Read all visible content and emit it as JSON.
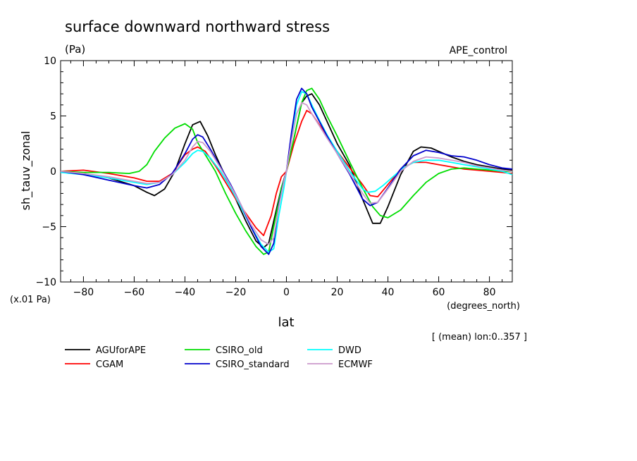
{
  "chart_data": {
    "type": "line",
    "title": "surface downward northward stress",
    "units_label": "(Pa)",
    "subtitle_right": "APE_control",
    "scale_note": "(x.01 Pa)",
    "xlabel": "lat",
    "x_units": "(degrees_north)",
    "ylabel": "sh_tauv_zonal",
    "footnote": "[ (mean) lon:0..357 ]",
    "xlim": [
      -89,
      89
    ],
    "ylim": [
      -10,
      10
    ],
    "x_ticks": [
      -80,
      -60,
      -40,
      -20,
      0,
      20,
      40,
      60,
      80
    ],
    "y_ticks": [
      -10,
      -5,
      0,
      5,
      10
    ],
    "x_tick_labels": [
      "−80",
      "−60",
      "−40",
      "−20",
      "0",
      "20",
      "40",
      "60",
      "80"
    ],
    "y_tick_labels": [
      "−10",
      "−5",
      "0",
      "5",
      "10"
    ],
    "grid": false,
    "legend_position": "bottom",
    "series": [
      {
        "name": "AGUforAPE",
        "color": "#000000",
        "x": [
          -89,
          -80,
          -70,
          -60,
          -55,
          -52,
          -48,
          -44,
          -40,
          -37,
          -34,
          -31,
          -28,
          -24,
          -20,
          -16,
          -12,
          -9,
          -7,
          -5,
          -2,
          0,
          3,
          6,
          8,
          10,
          13,
          16,
          20,
          25,
          30,
          34,
          37,
          40,
          45,
          50,
          53,
          57,
          60,
          65,
          70,
          75,
          80,
          85,
          89
        ],
        "y": [
          0,
          -0.2,
          -0.6,
          -1.3,
          -1.9,
          -2.2,
          -1.6,
          0,
          2.5,
          4.2,
          4.5,
          3.2,
          1.5,
          -0.5,
          -2.5,
          -4.5,
          -6.3,
          -6.9,
          -6.5,
          -4.5,
          -1.5,
          0,
          3,
          6.2,
          6.8,
          7,
          6,
          4.5,
          2.5,
          0.5,
          -2.5,
          -4.7,
          -4.7,
          -3.2,
          -0.3,
          1.8,
          2.2,
          2.1,
          1.8,
          1.3,
          0.9,
          0.6,
          0.4,
          0.2,
          0.1
        ]
      },
      {
        "name": "CGAM",
        "color": "#ff0000",
        "x": [
          -89,
          -80,
          -70,
          -60,
          -55,
          -50,
          -45,
          -40,
          -37,
          -35,
          -32,
          -28,
          -24,
          -20,
          -16,
          -12,
          -9,
          -6,
          -4,
          -2,
          0,
          3,
          6,
          8,
          10,
          13,
          16,
          20,
          25,
          30,
          33,
          36,
          40,
          45,
          50,
          55,
          60,
          65,
          70,
          75,
          80,
          85,
          89
        ],
        "y": [
          0,
          0.1,
          -0.2,
          -0.6,
          -0.9,
          -0.9,
          -0.2,
          1.5,
          2,
          2.2,
          1.8,
          0.5,
          -1,
          -2.5,
          -3.8,
          -5.1,
          -5.8,
          -4,
          -2,
          -0.5,
          0,
          2.5,
          4.5,
          5.5,
          5.2,
          4.2,
          3.2,
          1.8,
          0.3,
          -1.2,
          -2.2,
          -2.3,
          -1.2,
          0.2,
          0.8,
          0.8,
          0.6,
          0.4,
          0.2,
          0.1,
          0,
          -0.1,
          -0.2
        ]
      },
      {
        "name": "CSIRO_old",
        "color": "#00dd00",
        "x": [
          -89,
          -80,
          -70,
          -62,
          -58,
          -55,
          -52,
          -48,
          -44,
          -40,
          -37,
          -35,
          -32,
          -28,
          -24,
          -20,
          -16,
          -12,
          -9,
          -7,
          -5,
          -2,
          0,
          3,
          6,
          8,
          10,
          13,
          16,
          20,
          25,
          30,
          34,
          37,
          40,
          45,
          50,
          55,
          60,
          65,
          70,
          75,
          80,
          85,
          89
        ],
        "y": [
          0,
          -0.1,
          -0.1,
          -0.2,
          0,
          0.6,
          1.8,
          3,
          3.9,
          4.3,
          3.8,
          2.6,
          1.5,
          0,
          -2,
          -3.8,
          -5.4,
          -6.8,
          -7.5,
          -7.3,
          -5,
          -1.5,
          0,
          3,
          6.2,
          7.3,
          7.5,
          6.5,
          5,
          3.2,
          0.8,
          -1.5,
          -3.2,
          -4,
          -4.2,
          -3.5,
          -2.2,
          -1,
          -0.2,
          0.2,
          0.3,
          0.2,
          0.1,
          0,
          0
        ]
      },
      {
        "name": "DWD",
        "color": "#00ffff",
        "x": [
          -89,
          -80,
          -70,
          -60,
          -55,
          -50,
          -45,
          -40,
          -37,
          -35,
          -33,
          -30,
          -26,
          -22,
          -18,
          -14,
          -10,
          -7,
          -5,
          -3,
          -1,
          0,
          2,
          4,
          6,
          8,
          10,
          13,
          16,
          20,
          25,
          30,
          32,
          35,
          38,
          42,
          46,
          50,
          55,
          60,
          65,
          70,
          75,
          80,
          85,
          89
        ],
        "y": [
          -0.1,
          -0.3,
          -0.6,
          -1,
          -1.2,
          -1,
          -0.3,
          0.8,
          1.6,
          1.9,
          1.8,
          1.2,
          0,
          -1.5,
          -3.2,
          -5,
          -6.6,
          -7.3,
          -7,
          -4,
          -1.5,
          0,
          3,
          6,
          7.2,
          7,
          6,
          4.6,
          3.3,
          1.8,
          0,
          -1.6,
          -1.9,
          -1.8,
          -1.3,
          -0.5,
          0.3,
          0.8,
          1,
          1,
          0.8,
          0.6,
          0.4,
          0.2,
          0,
          -0.3
        ]
      },
      {
        "name": "CSIRO_standard",
        "color": "#0000cc",
        "x": [
          -89,
          -80,
          -70,
          -60,
          -55,
          -50,
          -45,
          -40,
          -37,
          -35,
          -33,
          -30,
          -26,
          -22,
          -18,
          -14,
          -10,
          -7,
          -5,
          -3,
          -1,
          0,
          2,
          4,
          6,
          8,
          10,
          13,
          16,
          20,
          25,
          30,
          33,
          36,
          40,
          45,
          50,
          55,
          60,
          65,
          70,
          75,
          80,
          85,
          89
        ],
        "y": [
          0,
          -0.3,
          -0.8,
          -1.3,
          -1.5,
          -1.2,
          -0.2,
          1.6,
          2.9,
          3.3,
          3.1,
          2,
          0.4,
          -1.2,
          -3,
          -5,
          -6.8,
          -7.5,
          -6.5,
          -3,
          -0.8,
          0,
          3.5,
          6.5,
          7.5,
          7,
          5.8,
          4.5,
          3.2,
          1.6,
          -0.3,
          -2.5,
          -3.1,
          -2.8,
          -1.5,
          0.2,
          1.4,
          1.9,
          1.7,
          1.4,
          1.3,
          1,
          0.6,
          0.3,
          0.2
        ]
      },
      {
        "name": "ECMWF",
        "color": "#cc99cc",
        "x": [
          -89,
          -80,
          -70,
          -60,
          -55,
          -50,
          -45,
          -40,
          -37,
          -35,
          -33,
          -30,
          -26,
          -22,
          -18,
          -14,
          -10,
          -7,
          -5,
          -3,
          -1,
          0,
          2,
          4,
          6,
          8,
          10,
          13,
          16,
          20,
          25,
          30,
          33,
          36,
          40,
          45,
          50,
          55,
          60,
          65,
          70,
          75,
          80,
          85,
          89
        ],
        "y": [
          0,
          -0.2,
          -0.5,
          -0.9,
          -1.1,
          -1,
          -0.3,
          1,
          2.2,
          2.7,
          2.6,
          1.8,
          0.3,
          -1.3,
          -3,
          -4.8,
          -6.2,
          -6.6,
          -6,
          -3.2,
          -0.9,
          0,
          2.8,
          5.2,
          6.2,
          6,
          5.2,
          4.1,
          3,
          1.6,
          -0.2,
          -2,
          -2.9,
          -2.8,
          -1.6,
          0,
          0.9,
          1.3,
          1.2,
          1,
          0.8,
          0.5,
          0.3,
          0.1,
          0
        ]
      }
    ]
  }
}
